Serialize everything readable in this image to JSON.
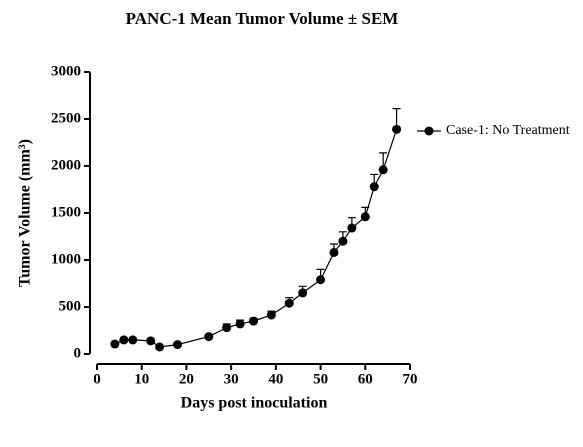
{
  "chart_data": {
    "type": "line",
    "title": "PANC-1 Mean Tumor Volume ± SEM",
    "x_label": "Days post inoculation",
    "y_label": "Tumor Volume (mm³)",
    "x": [
      4,
      6,
      8,
      12,
      14,
      18,
      25,
      29,
      32,
      35,
      39,
      43,
      46,
      50,
      53,
      55,
      57,
      60,
      62,
      64,
      67
    ],
    "series": [
      {
        "name": "Case-1: No Treatment",
        "color": "#000000",
        "values": [
          106,
          150,
          150,
          140,
          75,
          100,
          185,
          280,
          320,
          350,
          415,
          540,
          650,
          790,
          1080,
          1200,
          1340,
          1460,
          1780,
          1960,
          2390
        ],
        "errors": [
          15,
          20,
          15,
          15,
          10,
          15,
          20,
          40,
          40,
          30,
          40,
          60,
          70,
          110,
          90,
          100,
          110,
          100,
          130,
          180,
          220
        ]
      }
    ],
    "xlim": [
      0,
      70
    ],
    "xticks": [
      0,
      10,
      20,
      30,
      40,
      50,
      60,
      70
    ],
    "ylim": [
      0,
      3000
    ],
    "yticks": [
      0,
      500,
      1000,
      1500,
      2000,
      2500,
      3000
    ],
    "grid": false,
    "legend": "right"
  }
}
